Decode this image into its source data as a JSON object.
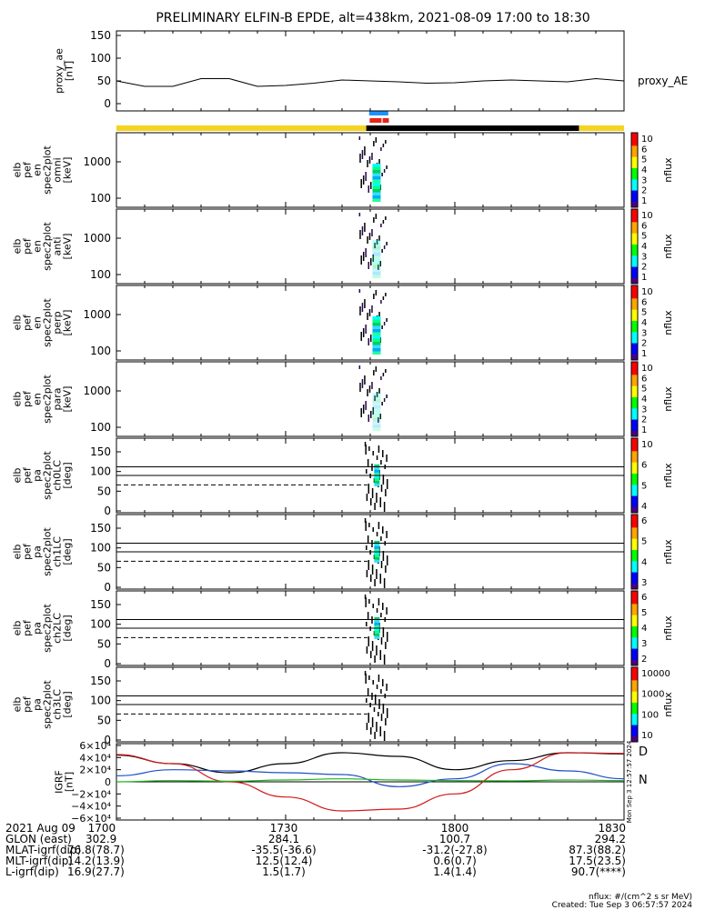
{
  "title": "PRELIMINARY ELFIN-B EPDE, alt=438km, 2021-08-09 17:00 to 18:30",
  "colors": {
    "yellow_bar": "#f6d31e",
    "black_bar": "#000000",
    "blue_marker": "#1e90ff",
    "red_marker": "#e8231b",
    "line_black": "#000000",
    "line_blue": "#1f4fc9",
    "line_red": "#d11a1a",
    "line_green": "#1bb31b"
  },
  "ae_panel": {
    "ylabel_lines": [
      "proxy_ae",
      "[nT]"
    ],
    "yticks": [
      "150",
      "100",
      "50",
      "0"
    ],
    "legend": "proxy_AE"
  },
  "spec_panels": [
    {
      "ylabel_lines": [
        "elb",
        "pef",
        "en",
        "spec2plot",
        "omni",
        "[keV]"
      ],
      "yticks": [
        "1000",
        "100"
      ],
      "cbar_ticks": [
        "10",
        "6",
        "5",
        "4",
        "3",
        "2",
        "1"
      ],
      "cbar_label": "nflux"
    },
    {
      "ylabel_lines": [
        "elb",
        "pef",
        "en",
        "spec2plot",
        "anti",
        "[keV]"
      ],
      "yticks": [
        "1000",
        "100"
      ],
      "cbar_ticks": [
        "10",
        "6",
        "5",
        "4",
        "3",
        "2",
        "1"
      ],
      "cbar_label": "nflux"
    },
    {
      "ylabel_lines": [
        "elb",
        "pef",
        "en",
        "spec2plot",
        "perp",
        "[keV]"
      ],
      "yticks": [
        "1000",
        "100"
      ],
      "cbar_ticks": [
        "10",
        "6",
        "5",
        "4",
        "3",
        "2",
        "1"
      ],
      "cbar_label": "nflux"
    },
    {
      "ylabel_lines": [
        "elb",
        "pef",
        "en",
        "spec2plot",
        "para",
        "[keV]"
      ],
      "yticks": [
        "1000",
        "100"
      ],
      "cbar_ticks": [
        "10",
        "6",
        "5",
        "4",
        "3",
        "2",
        "1"
      ],
      "cbar_label": "nflux"
    }
  ],
  "pa_panels": [
    {
      "ylabel_lines": [
        "elb",
        "pef",
        "pa",
        "spec2plot",
        "ch0LC",
        "[deg]"
      ],
      "yticks": [
        "150",
        "100",
        "50",
        "0"
      ],
      "cbar_ticks": [
        "10",
        "6",
        "5",
        "4"
      ],
      "cbar_label": "nflux"
    },
    {
      "ylabel_lines": [
        "elb",
        "pef",
        "pa",
        "spec2plot",
        "ch1LC",
        "[deg]"
      ],
      "yticks": [
        "150",
        "100",
        "50",
        "0"
      ],
      "cbar_ticks": [
        "6",
        "5",
        "4",
        "3"
      ],
      "cbar_label": "nflux"
    },
    {
      "ylabel_lines": [
        "elb",
        "pef",
        "pa",
        "spec2plot",
        "ch2LC",
        "[deg]"
      ],
      "yticks": [
        "150",
        "100",
        "50",
        "0"
      ],
      "cbar_ticks": [
        "6",
        "5",
        "4",
        "3",
        "2"
      ],
      "cbar_label": "nflux"
    },
    {
      "ylabel_lines": [
        "elb",
        "pef",
        "pa",
        "spec2plot",
        "ch3LC",
        "[deg]"
      ],
      "yticks": [
        "150",
        "100",
        "50",
        "0"
      ],
      "cbar_ticks": [
        "10000",
        "1000",
        "100",
        "10"
      ],
      "cbar_label": "nflux"
    }
  ],
  "igrf_panel": {
    "ylabel_lines": [
      "IGRF",
      "[nT]"
    ],
    "yticks": [
      "6×10⁴",
      "4×10⁴",
      "2×10⁴",
      "0",
      "−2×10⁴",
      "−4×10⁴",
      "−6×10⁴"
    ],
    "labels": {
      "D": "D",
      "N": "N"
    },
    "side_text": "Mon Sep  3 12:57:57 2024"
  },
  "chart_data": {
    "type": "line",
    "title": "PRELIMINARY ELFIN-B EPDE, alt=438km, 2021-08-09 17:00 to 18:30",
    "x_range": [
      "17:00",
      "18:30"
    ],
    "x_ticks": [
      "1700",
      "1730",
      "1800",
      "1830"
    ],
    "series": [
      {
        "name": "proxy_AE",
        "ylim": [
          0,
          160
        ],
        "x_min": [
          0,
          5,
          10,
          15,
          20,
          25,
          30,
          35,
          40,
          45,
          50,
          55,
          60,
          65,
          70,
          75,
          80,
          85,
          90
        ],
        "values": [
          50,
          38,
          38,
          55,
          55,
          38,
          40,
          45,
          52,
          50,
          48,
          45,
          46,
          50,
          52,
          50,
          48,
          55,
          50
        ]
      }
    ],
    "spectrogram_activity": {
      "start_min": 44,
      "end_min": 47,
      "peak_min": 46
    },
    "igrf": {
      "ylim": [
        -60000,
        60000
      ],
      "x_min": [
        0,
        10,
        20,
        30,
        40,
        50,
        60,
        70,
        80,
        90
      ],
      "black": [
        44000,
        30000,
        15000,
        30000,
        48000,
        42000,
        20000,
        35000,
        48000,
        46000
      ],
      "blue": [
        10000,
        20000,
        18000,
        15000,
        12000,
        -8000,
        5000,
        30000,
        18000,
        5000
      ],
      "red": [
        45000,
        30000,
        0,
        -25000,
        -48000,
        -45000,
        -20000,
        20000,
        48000,
        47000
      ],
      "green": [
        0,
        2000,
        1000,
        3000,
        5000,
        3000,
        2000,
        1500,
        3000,
        2000
      ]
    }
  },
  "footer": {
    "rows": [
      {
        "label": "2021 Aug 09",
        "v": [
          "1700",
          "1730",
          "1800",
          "1830"
        ]
      },
      {
        "label": "GLON (east)",
        "v": [
          "302.9",
          "284.1",
          "100.7",
          "294.2"
        ]
      },
      {
        "label": "MLAT-igrf(dip)",
        "v": [
          "76.8(78.7)",
          "-35.5(-36.6)",
          "-31.2(-27.8)",
          "87.3(88.2)"
        ]
      },
      {
        "label": "MLT-igrf(dip)",
        "v": [
          "14.2(13.9)",
          "12.5(12.4)",
          "0.6(0.7)",
          "17.5(23.5)"
        ]
      },
      {
        "label": "L-igrf(dip)",
        "v": [
          "16.9(27.7)",
          "1.5(1.7)",
          "1.4(1.4)",
          "90.7(****)"
        ]
      }
    ],
    "note1": "nflux: #/(cm^2 s sr MeV)",
    "note2": "Created: Tue Sep  3 06:57:57 2024"
  }
}
